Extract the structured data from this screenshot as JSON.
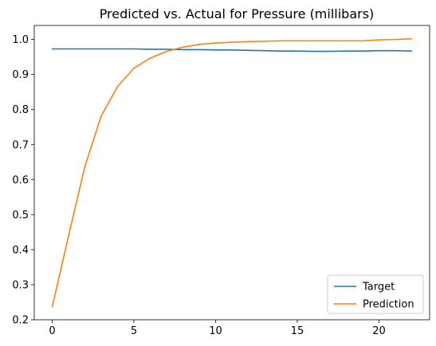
{
  "chart_data": {
    "type": "line",
    "title": "Predicted vs. Actual for Pressure (millibars)",
    "xlabel": "",
    "ylabel": "",
    "xlim": [
      -1.1,
      23.1
    ],
    "ylim": [
      0.2,
      1.04
    ],
    "xticks": [
      0,
      5,
      10,
      15,
      20
    ],
    "yticks": [
      0.2,
      0.3,
      0.4,
      0.5,
      0.6,
      0.7,
      0.8,
      0.9,
      1.0
    ],
    "ytick_labels": [
      "0.2",
      "0.3",
      "0.4",
      "0.5",
      "0.6",
      "0.7",
      "0.8",
      "0.9",
      "1.0"
    ],
    "grid": false,
    "legend_position": "lower-right",
    "x": [
      0,
      1,
      2,
      3,
      4,
      5,
      6,
      7,
      8,
      9,
      10,
      11,
      12,
      13,
      14,
      15,
      16,
      17,
      18,
      19,
      20,
      21,
      22
    ],
    "series": [
      {
        "name": "Target",
        "color": "#1f77b4",
        "values": [
          0.973,
          0.973,
          0.973,
          0.973,
          0.973,
          0.973,
          0.972,
          0.972,
          0.971,
          0.971,
          0.97,
          0.97,
          0.969,
          0.968,
          0.967,
          0.967,
          0.966,
          0.966,
          0.967,
          0.967,
          0.968,
          0.968,
          0.967
        ]
      },
      {
        "name": "Prediction",
        "color": "#ff7f0e",
        "values": [
          0.237,
          0.44,
          0.638,
          0.782,
          0.866,
          0.918,
          0.947,
          0.966,
          0.978,
          0.986,
          0.99,
          0.992,
          0.994,
          0.995,
          0.996,
          0.996,
          0.996,
          0.996,
          0.996,
          0.996,
          0.999,
          1.0,
          1.002
        ]
      }
    ]
  }
}
